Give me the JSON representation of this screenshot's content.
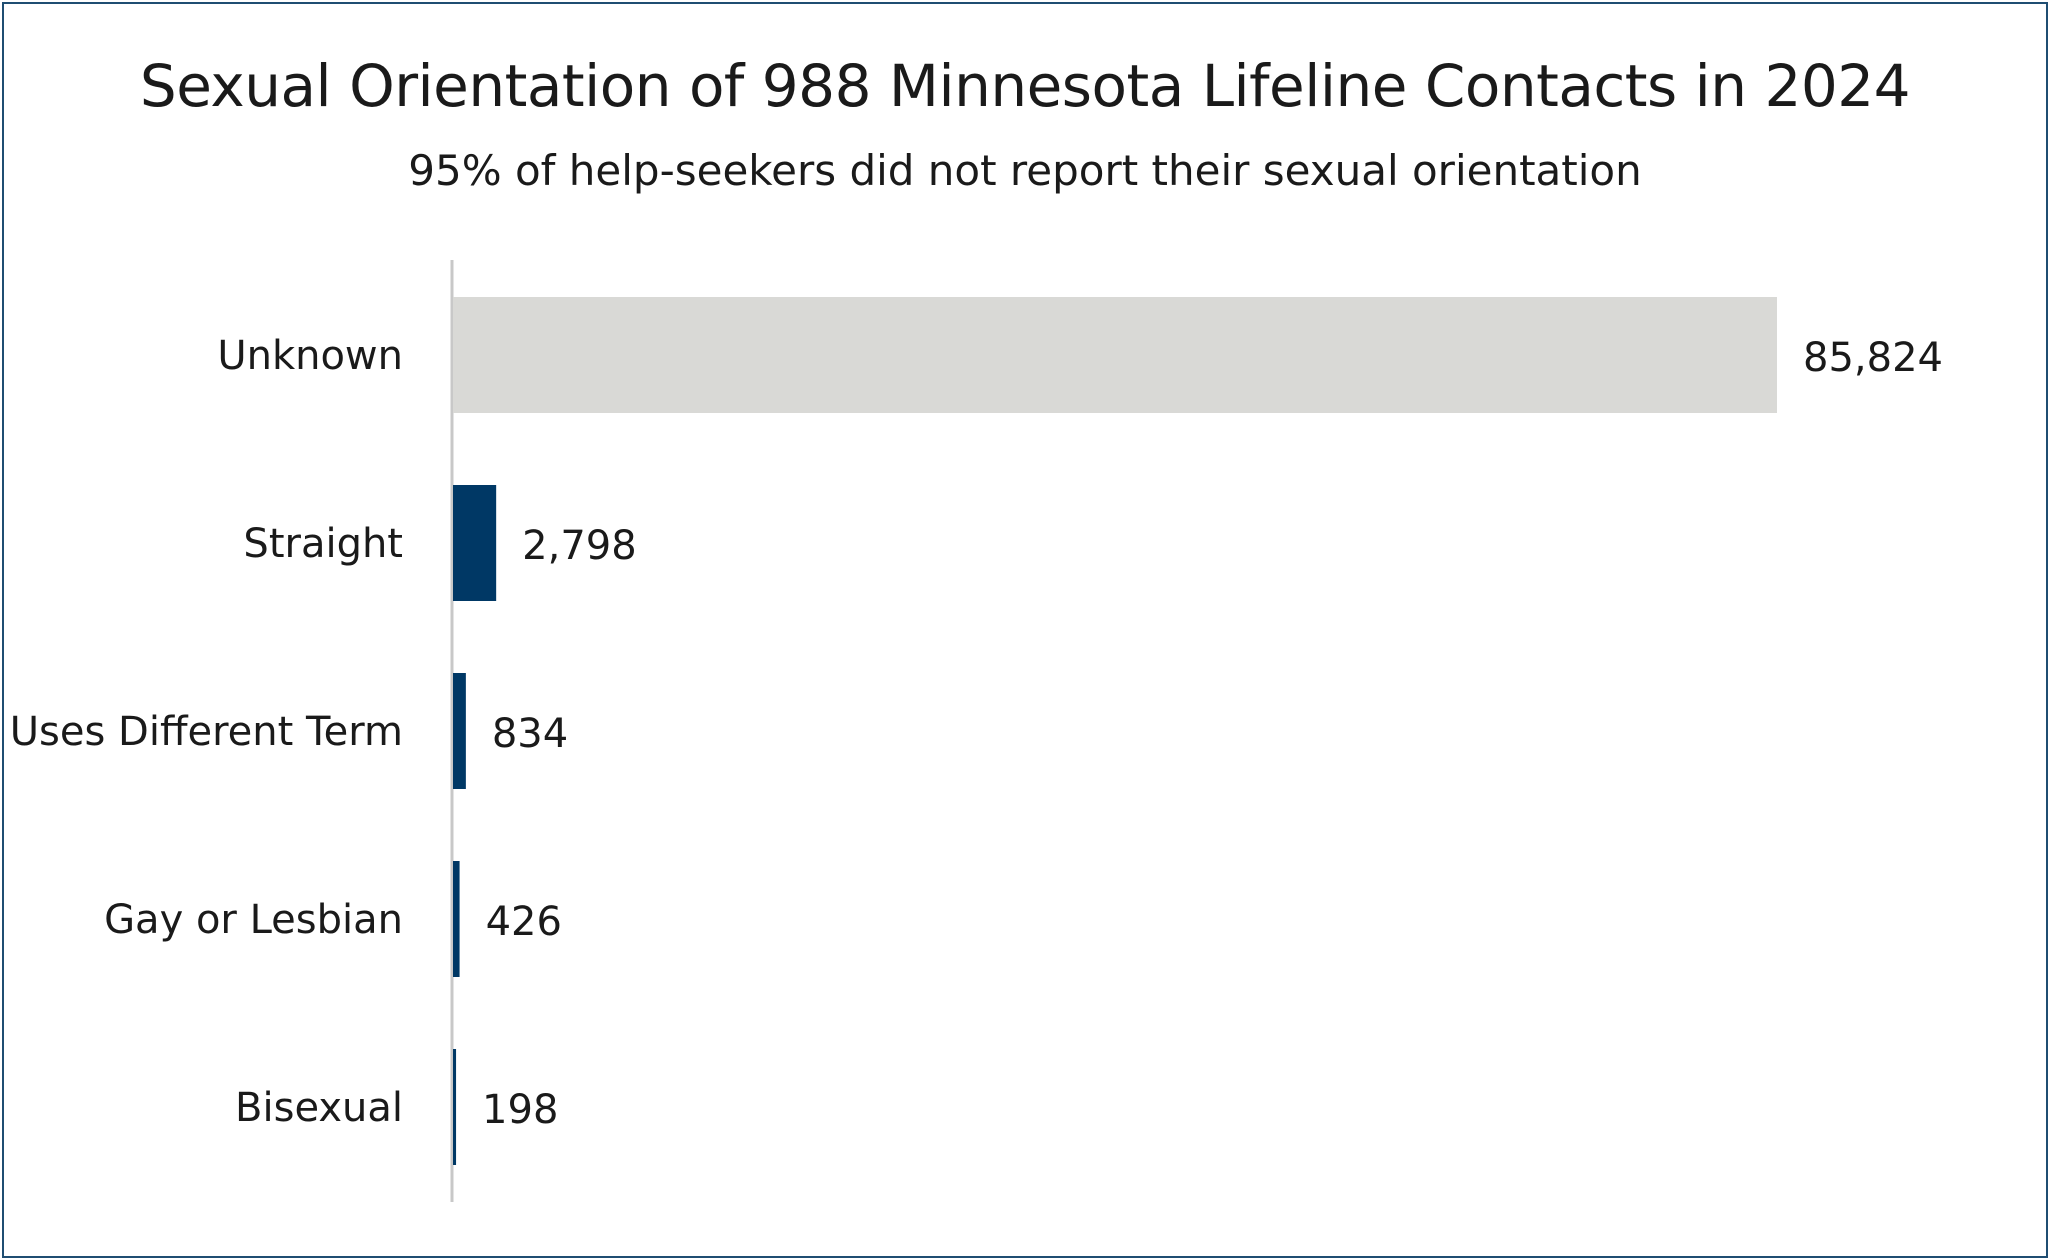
{
  "chart_data": {
    "type": "bar",
    "orientation": "horizontal",
    "title": "Sexual Orientation of 988 Minnesota Lifeline Contacts in 2024",
    "subtitle": "95% of help-seekers did not report their sexual orientation",
    "categories": [
      "Unknown",
      "Straight",
      "Uses Different Term",
      "Gay or Lesbian",
      "Bisexual"
    ],
    "values": [
      85824,
      2798,
      834,
      426,
      198
    ],
    "value_labels": [
      "85,824",
      "2,798",
      "834",
      "426",
      "198"
    ],
    "colors": [
      "#d9d9d6",
      "#003865",
      "#003865",
      "#003865",
      "#003865"
    ],
    "xlabel": "",
    "ylabel": "",
    "xlim": [
      0,
      85824
    ],
    "grid": false,
    "legend": "none"
  }
}
